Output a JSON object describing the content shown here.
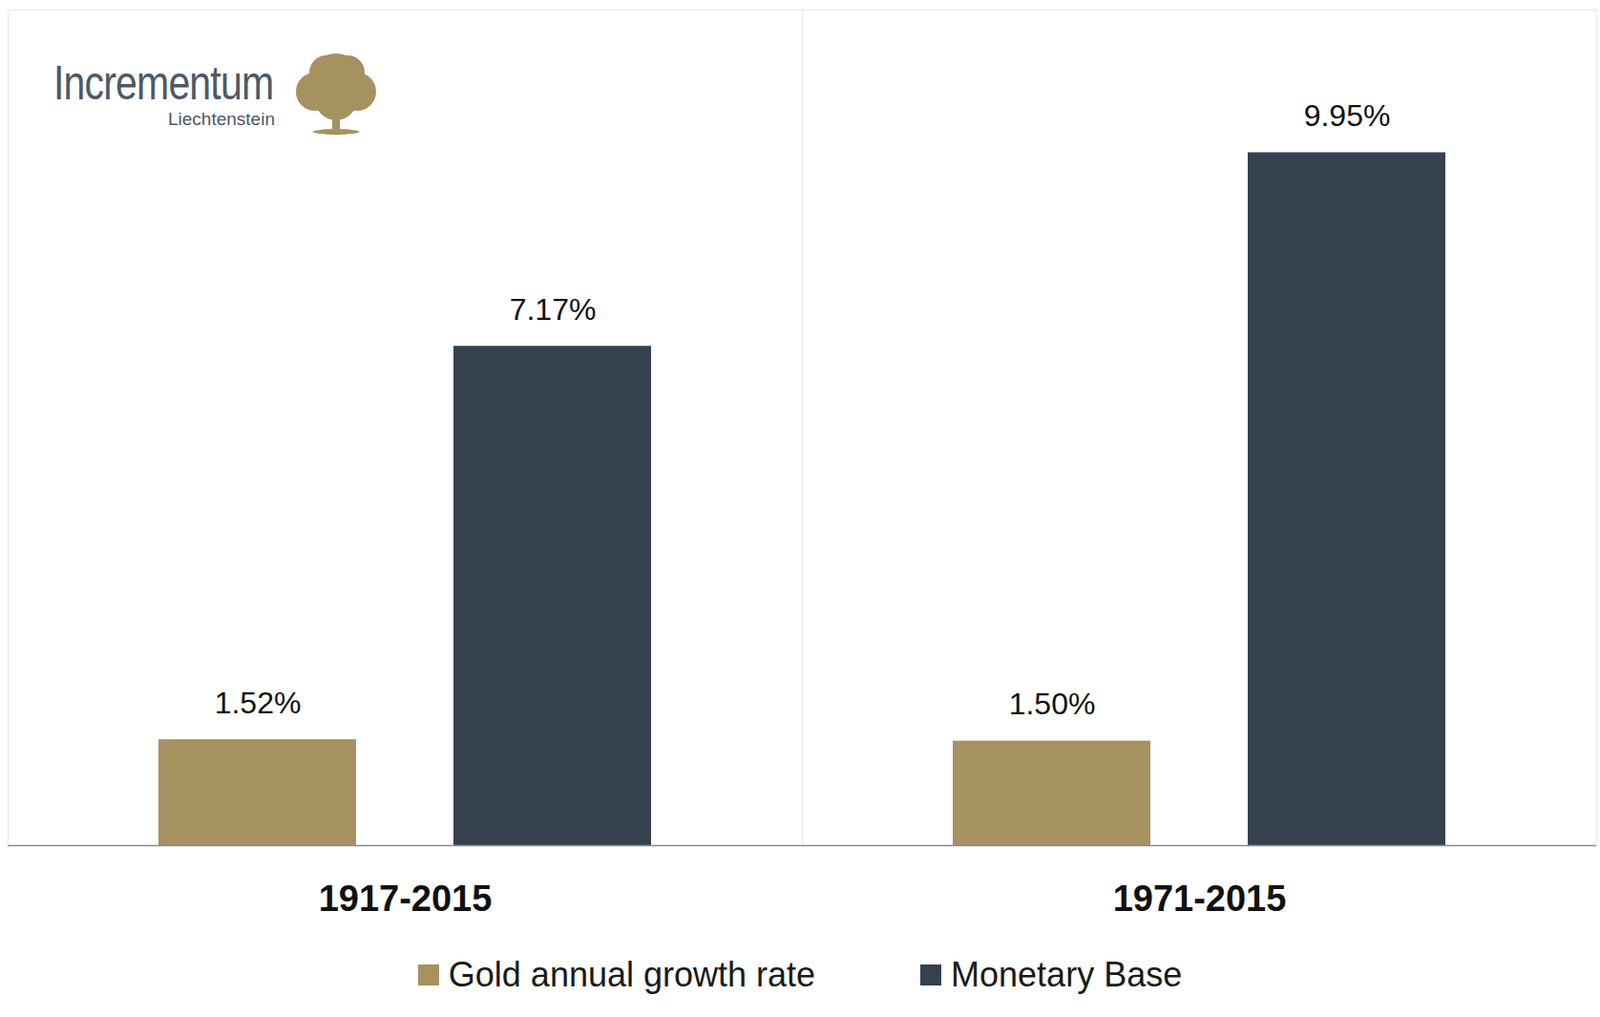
{
  "chart_data": {
    "type": "bar",
    "annotations": [
      "Incrementum",
      "Liechtenstein"
    ],
    "categories": [
      "1917-2015",
      "1971-2015"
    ],
    "series": [
      {
        "name": "Gold annual growth rate",
        "color": "#a69161",
        "values": [
          1.52,
          1.5
        ],
        "value_labels": [
          "1.52%",
          "1.50%"
        ]
      },
      {
        "name": "Monetary Base",
        "color": "#35414f",
        "values": [
          7.17,
          9.95
        ],
        "value_labels": [
          "7.17%",
          "9.95%"
        ]
      }
    ],
    "ylim": [
      0,
      12
    ],
    "grid": false,
    "legend": "bottom",
    "data_labels": true,
    "tick_labels": "x"
  }
}
